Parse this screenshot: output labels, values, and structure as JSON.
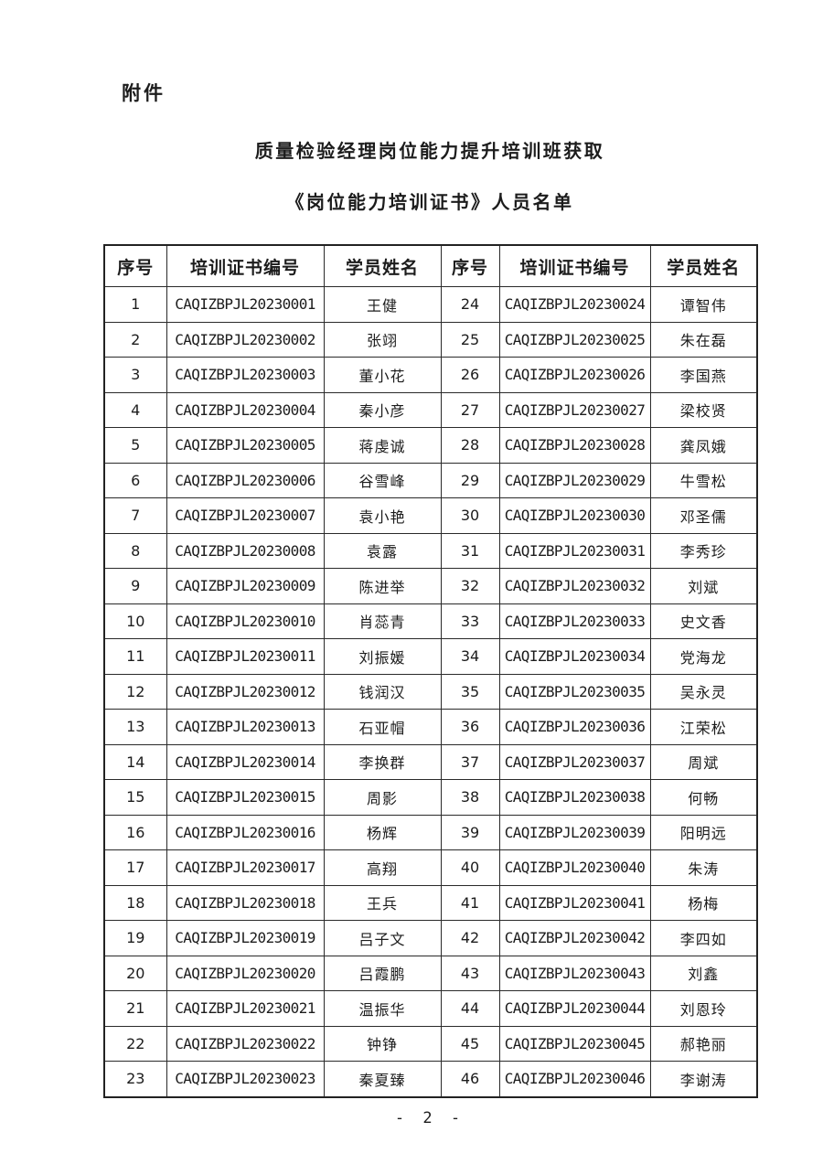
{
  "page": {
    "attachment_label": "附件",
    "title_line1": "质量检验经理岗位能力提升培训班获取",
    "title_line2": "《岗位能力培训证书》人员名单",
    "page_number": "- 2 -"
  },
  "table": {
    "headers": [
      "序号",
      "培训证书编号",
      "学员姓名",
      "序号",
      "培训证书编号",
      "学员姓名"
    ],
    "rows": [
      {
        "no1": "1",
        "cert1": "CAQIZBPJL20230001",
        "name1": "王健",
        "no2": "24",
        "cert2": "CAQIZBPJL20230024",
        "name2": "谭智伟"
      },
      {
        "no1": "2",
        "cert1": "CAQIZBPJL20230002",
        "name1": "张翊",
        "no2": "25",
        "cert2": "CAQIZBPJL20230025",
        "name2": "朱在磊"
      },
      {
        "no1": "3",
        "cert1": "CAQIZBPJL20230003",
        "name1": "董小花",
        "no2": "26",
        "cert2": "CAQIZBPJL20230026",
        "name2": "李国燕"
      },
      {
        "no1": "4",
        "cert1": "CAQIZBPJL20230004",
        "name1": "秦小彦",
        "no2": "27",
        "cert2": "CAQIZBPJL20230027",
        "name2": "梁校贤"
      },
      {
        "no1": "5",
        "cert1": "CAQIZBPJL20230005",
        "name1": "蒋虔诚",
        "no2": "28",
        "cert2": "CAQIZBPJL20230028",
        "name2": "龚凤娥"
      },
      {
        "no1": "6",
        "cert1": "CAQIZBPJL20230006",
        "name1": "谷雪峰",
        "no2": "29",
        "cert2": "CAQIZBPJL20230029",
        "name2": "牛雪松"
      },
      {
        "no1": "7",
        "cert1": "CAQIZBPJL20230007",
        "name1": "袁小艳",
        "no2": "30",
        "cert2": "CAQIZBPJL20230030",
        "name2": "邓圣儒"
      },
      {
        "no1": "8",
        "cert1": "CAQIZBPJL20230008",
        "name1": "袁露",
        "no2": "31",
        "cert2": "CAQIZBPJL20230031",
        "name2": "李秀珍"
      },
      {
        "no1": "9",
        "cert1": "CAQIZBPJL20230009",
        "name1": "陈进举",
        "no2": "32",
        "cert2": "CAQIZBPJL20230032",
        "name2": "刘斌"
      },
      {
        "no1": "10",
        "cert1": "CAQIZBPJL20230010",
        "name1": "肖蕊青",
        "no2": "33",
        "cert2": "CAQIZBPJL20230033",
        "name2": "史文香"
      },
      {
        "no1": "11",
        "cert1": "CAQIZBPJL20230011",
        "name1": "刘振媛",
        "no2": "34",
        "cert2": "CAQIZBPJL20230034",
        "name2": "党海龙"
      },
      {
        "no1": "12",
        "cert1": "CAQIZBPJL20230012",
        "name1": "钱润汉",
        "no2": "35",
        "cert2": "CAQIZBPJL20230035",
        "name2": "吴永灵"
      },
      {
        "no1": "13",
        "cert1": "CAQIZBPJL20230013",
        "name1": "石亚帽",
        "no2": "36",
        "cert2": "CAQIZBPJL20230036",
        "name2": "江荣松"
      },
      {
        "no1": "14",
        "cert1": "CAQIZBPJL20230014",
        "name1": "李换群",
        "no2": "37",
        "cert2": "CAQIZBPJL20230037",
        "name2": "周斌"
      },
      {
        "no1": "15",
        "cert1": "CAQIZBPJL20230015",
        "name1": "周影",
        "no2": "38",
        "cert2": "CAQIZBPJL20230038",
        "name2": "何畅"
      },
      {
        "no1": "16",
        "cert1": "CAQIZBPJL20230016",
        "name1": "杨辉",
        "no2": "39",
        "cert2": "CAQIZBPJL20230039",
        "name2": "阳明远"
      },
      {
        "no1": "17",
        "cert1": "CAQIZBPJL20230017",
        "name1": "高翔",
        "no2": "40",
        "cert2": "CAQIZBPJL20230040",
        "name2": "朱涛"
      },
      {
        "no1": "18",
        "cert1": "CAQIZBPJL20230018",
        "name1": "王兵",
        "no2": "41",
        "cert2": "CAQIZBPJL20230041",
        "name2": "杨梅"
      },
      {
        "no1": "19",
        "cert1": "CAQIZBPJL20230019",
        "name1": "吕子文",
        "no2": "42",
        "cert2": "CAQIZBPJL20230042",
        "name2": "李四如"
      },
      {
        "no1": "20",
        "cert1": "CAQIZBPJL20230020",
        "name1": "吕霞鹏",
        "no2": "43",
        "cert2": "CAQIZBPJL20230043",
        "name2": "刘鑫"
      },
      {
        "no1": "21",
        "cert1": "CAQIZBPJL20230021",
        "name1": "温振华",
        "no2": "44",
        "cert2": "CAQIZBPJL20230044",
        "name2": "刘恩玲"
      },
      {
        "no1": "22",
        "cert1": "CAQIZBPJL20230022",
        "name1": "钟铮",
        "no2": "45",
        "cert2": "CAQIZBPJL20230045",
        "name2": "郝艳丽"
      },
      {
        "no1": "23",
        "cert1": "CAQIZBPJL20230023",
        "name1": "秦夏臻",
        "no2": "46",
        "cert2": "CAQIZBPJL20230046",
        "name2": "李谢涛"
      }
    ]
  }
}
